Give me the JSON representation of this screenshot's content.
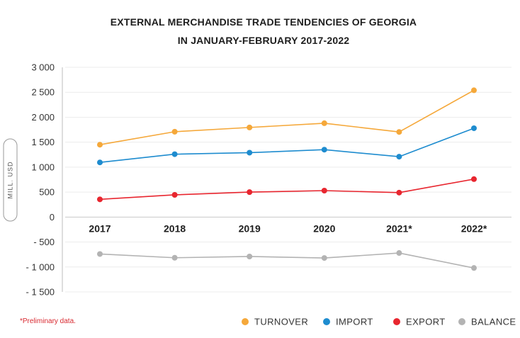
{
  "chart_data": {
    "type": "line",
    "title_line1": "EXTERNAL MERCHANDISE TRADE TENDENCIES OF GEORGIA",
    "title_line2": "IN JANUARY-FEBRUARY 2017-2022",
    "ylabel": "MILL. USD",
    "xlabel": "",
    "ylim": [
      -1500,
      3000
    ],
    "yticks": [
      3000,
      2500,
      2000,
      1500,
      1000,
      500,
      0,
      -500,
      -1000,
      -1500
    ],
    "ytick_labels": [
      "3 000",
      "2 500",
      "2 000",
      "1 500",
      "1 000",
      "500",
      "0",
      "- 500",
      "- 1 000",
      "- 1 500"
    ],
    "categories": [
      "2017",
      "2018",
      "2019",
      "2020",
      "2021*",
      "2022*"
    ],
    "series": [
      {
        "name": "TURNOVER",
        "color": "#f5a83a",
        "values": [
          1450,
          1710,
          1795,
          1880,
          1705,
          2540
        ]
      },
      {
        "name": "IMPORT",
        "color": "#1e8ccf",
        "values": [
          1095,
          1260,
          1290,
          1350,
          1210,
          1780
        ]
      },
      {
        "name": "EXPORT",
        "color": "#e8262f",
        "values": [
          355,
          445,
          500,
          530,
          490,
          760
        ]
      },
      {
        "name": "BALANCE",
        "color": "#b3b3b3",
        "values": [
          -740,
          -815,
          -790,
          -820,
          -720,
          -1020
        ]
      }
    ],
    "legend_position": "bottom-right",
    "grid": true,
    "note": "*Preliminary data."
  }
}
